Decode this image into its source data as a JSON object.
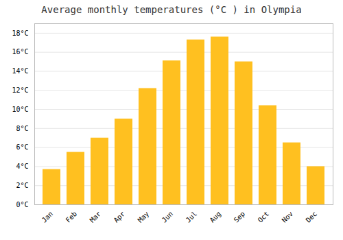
{
  "chart_data": {
    "type": "bar",
    "title": "Average monthly temperatures (°C ) in Olympia",
    "categories": [
      "Jan",
      "Feb",
      "Mar",
      "Apr",
      "May",
      "Jun",
      "Jul",
      "Aug",
      "Sep",
      "Oct",
      "Nov",
      "Dec"
    ],
    "values": [
      3.7,
      5.5,
      7.0,
      9.0,
      12.2,
      15.1,
      17.3,
      17.6,
      15.0,
      10.4,
      6.5,
      4.0
    ],
    "color": "#FFC020",
    "ylim": [
      0,
      19
    ],
    "yticks": [
      {
        "value": 0,
        "label": "0°C"
      },
      {
        "value": 2,
        "label": "2°C"
      },
      {
        "value": 4,
        "label": "4°C"
      },
      {
        "value": 6,
        "label": "6°C"
      },
      {
        "value": 8,
        "label": "8°C"
      },
      {
        "value": 10,
        "label": "10°C"
      },
      {
        "value": 12,
        "label": "12°C"
      },
      {
        "value": 14,
        "label": "14°C"
      },
      {
        "value": 16,
        "label": "16°C"
      },
      {
        "value": 18,
        "label": "18°C"
      }
    ],
    "grid": true
  }
}
